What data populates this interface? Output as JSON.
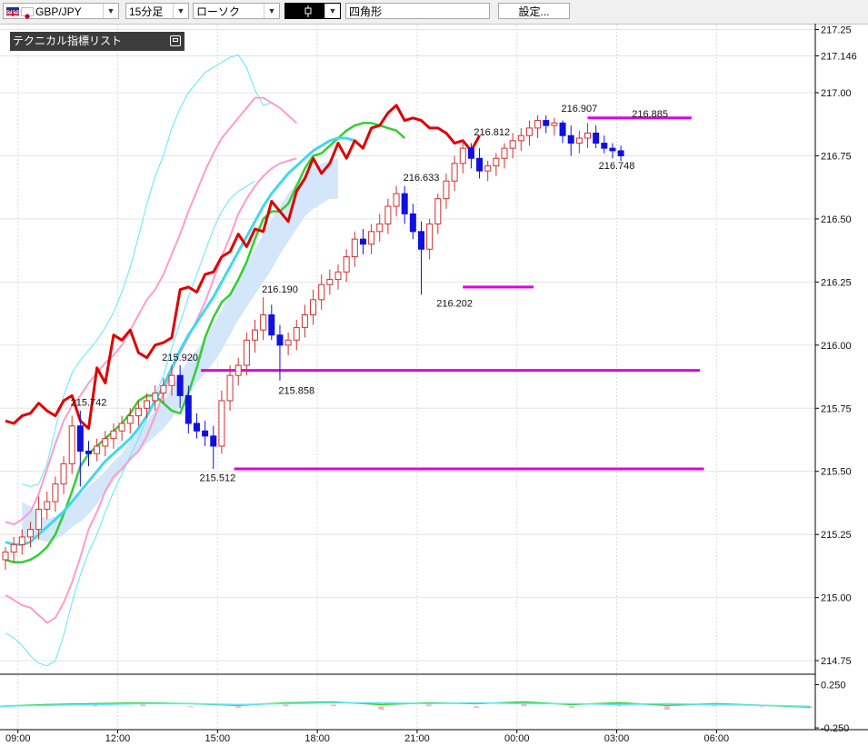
{
  "toolbar": {
    "symbol": "GBP/JPY",
    "timeframe": "15分足",
    "chart_style": "ローソク",
    "draw_tool_label": "四角形",
    "settings_label": "設定...",
    "dropdown_icon": "chevron-down-icon"
  },
  "indicator_panel": {
    "title": "テクニカル指標リスト",
    "button_icon": "restore-window-icon"
  },
  "colors": {
    "up_candle": "#d03030",
    "down_candle": "#1010e0",
    "tenkan_line": "#e00000",
    "bollinger_mid": "#30d030",
    "bollinger_inner": "#ff9cc8",
    "bollinger_outer": "#5ee8ff",
    "moving_average": "#40d8f0",
    "cloud": "#cfe3f8",
    "horizontal_line": "#e000e0"
  },
  "chart_data": {
    "type": "candlestick",
    "y_ticks": [
      {
        "value": 217.25,
        "label": "217.25"
      },
      {
        "value": 217.146,
        "label": "217.146"
      },
      {
        "value": 217.0,
        "label": "217.00"
      },
      {
        "value": 216.75,
        "label": "216.75"
      },
      {
        "value": 216.5,
        "label": "216.50"
      },
      {
        "value": 216.25,
        "label": "216.25"
      },
      {
        "value": 216.0,
        "label": "216.00"
      },
      {
        "value": 215.75,
        "label": "215.75"
      },
      {
        "value": 215.5,
        "label": "215.50"
      },
      {
        "value": 215.25,
        "label": "215.25"
      },
      {
        "value": 215.0,
        "label": "215.00"
      },
      {
        "value": 214.75,
        "label": "214.75"
      }
    ],
    "ylim": [
      214.7,
      217.27
    ],
    "x_ticks": [
      {
        "x": 1.5,
        "label": "09:00"
      },
      {
        "x": 13.5,
        "label": "12:00"
      },
      {
        "x": 25.5,
        "label": "15:00"
      },
      {
        "x": 37.5,
        "label": "18:00"
      },
      {
        "x": 49.5,
        "label": "21:00"
      },
      {
        "x": 61.5,
        "label": "00:00"
      },
      {
        "x": 73.5,
        "label": "03:00"
      },
      {
        "x": 85.5,
        "label": "06:00"
      }
    ],
    "candles": [
      [
        215.15,
        215.2,
        215.11,
        215.18
      ],
      [
        215.18,
        215.24,
        215.14,
        215.21
      ],
      [
        215.21,
        215.27,
        215.17,
        215.24
      ],
      [
        215.24,
        215.3,
        215.2,
        215.27
      ],
      [
        215.27,
        215.4,
        215.23,
        215.35
      ],
      [
        215.35,
        215.42,
        215.31,
        215.38
      ],
      [
        215.38,
        215.48,
        215.34,
        215.45
      ],
      [
        215.45,
        215.56,
        215.41,
        215.53
      ],
      [
        215.53,
        215.72,
        215.49,
        215.68
      ],
      [
        215.68,
        215.74,
        215.44,
        215.58
      ],
      [
        215.58,
        215.62,
        215.52,
        215.57
      ],
      [
        215.57,
        215.63,
        215.54,
        215.6
      ],
      [
        215.6,
        215.66,
        215.56,
        215.63
      ],
      [
        215.63,
        215.69,
        215.59,
        215.66
      ],
      [
        215.66,
        215.72,
        215.62,
        215.69
      ],
      [
        215.69,
        215.75,
        215.65,
        215.72
      ],
      [
        215.72,
        215.78,
        215.68,
        215.75
      ],
      [
        215.75,
        215.81,
        215.71,
        215.78
      ],
      [
        215.78,
        215.84,
        215.74,
        215.81
      ],
      [
        215.81,
        215.87,
        215.77,
        215.84
      ],
      [
        215.84,
        215.92,
        215.8,
        215.88
      ],
      [
        215.88,
        215.92,
        215.75,
        215.8
      ],
      [
        215.8,
        215.84,
        215.65,
        215.69
      ],
      [
        215.69,
        215.73,
        215.63,
        215.66
      ],
      [
        215.66,
        215.7,
        215.6,
        215.64
      ],
      [
        215.64,
        215.68,
        215.51,
        215.6
      ],
      [
        215.6,
        215.82,
        215.57,
        215.78
      ],
      [
        215.78,
        215.92,
        215.74,
        215.88
      ],
      [
        215.88,
        215.95,
        215.84,
        215.92
      ],
      [
        215.92,
        216.05,
        215.88,
        216.02
      ],
      [
        216.02,
        216.1,
        215.97,
        216.06
      ],
      [
        216.06,
        216.19,
        216.02,
        216.12
      ],
      [
        216.12,
        216.16,
        216.02,
        216.04
      ],
      [
        216.04,
        216.08,
        215.86,
        216.0
      ],
      [
        216.0,
        216.05,
        215.96,
        216.02
      ],
      [
        216.02,
        216.1,
        215.98,
        216.07
      ],
      [
        216.07,
        216.16,
        216.03,
        216.12
      ],
      [
        216.12,
        216.22,
        216.08,
        216.18
      ],
      [
        216.18,
        216.28,
        216.14,
        216.24
      ],
      [
        216.24,
        216.3,
        216.2,
        216.26
      ],
      [
        216.26,
        216.32,
        216.22,
        216.29
      ],
      [
        216.29,
        216.38,
        216.25,
        216.35
      ],
      [
        216.35,
        216.45,
        216.31,
        216.42
      ],
      [
        216.42,
        216.46,
        216.36,
        216.4
      ],
      [
        216.4,
        216.48,
        216.36,
        216.45
      ],
      [
        216.45,
        216.52,
        216.41,
        216.48
      ],
      [
        216.48,
        216.58,
        216.44,
        216.55
      ],
      [
        216.55,
        216.63,
        216.51,
        216.6
      ],
      [
        216.6,
        216.63,
        216.48,
        216.52
      ],
      [
        216.52,
        216.56,
        216.42,
        216.45
      ],
      [
        216.45,
        216.49,
        216.2,
        216.38
      ],
      [
        216.38,
        216.5,
        216.34,
        216.48
      ],
      [
        216.48,
        216.6,
        216.44,
        216.58
      ],
      [
        216.58,
        216.68,
        216.54,
        216.65
      ],
      [
        216.65,
        216.75,
        216.61,
        216.72
      ],
      [
        216.72,
        216.81,
        216.68,
        216.78
      ],
      [
        216.78,
        216.8,
        216.7,
        216.74
      ],
      [
        216.74,
        216.78,
        216.66,
        216.69
      ],
      [
        216.69,
        216.73,
        216.65,
        216.71
      ],
      [
        216.71,
        216.76,
        216.67,
        216.74
      ],
      [
        216.74,
        216.8,
        216.7,
        216.78
      ],
      [
        216.78,
        216.84,
        216.74,
        216.81
      ],
      [
        216.81,
        216.86,
        216.77,
        216.83
      ],
      [
        216.83,
        216.89,
        216.79,
        216.86
      ],
      [
        216.86,
        216.91,
        216.82,
        216.89
      ],
      [
        216.89,
        216.91,
        216.84,
        216.87
      ],
      [
        216.87,
        216.9,
        216.83,
        216.88
      ],
      [
        216.88,
        216.89,
        216.8,
        216.83
      ],
      [
        216.83,
        216.87,
        216.75,
        216.8
      ],
      [
        216.8,
        216.85,
        216.76,
        216.82
      ],
      [
        216.82,
        216.88,
        216.78,
        216.84
      ],
      [
        216.84,
        216.87,
        216.78,
        216.8
      ],
      [
        216.8,
        216.83,
        216.76,
        216.78
      ],
      [
        216.78,
        216.8,
        216.74,
        216.77
      ],
      [
        216.77,
        216.79,
        216.73,
        216.75
      ]
    ],
    "tenkan": [
      215.7,
      215.69,
      215.72,
      215.73,
      215.77,
      215.74,
      215.72,
      215.78,
      215.8,
      215.7,
      215.67,
      215.91,
      215.85,
      216.04,
      216.02,
      216.06,
      215.97,
      215.95,
      216.0,
      216.01,
      216.03,
      216.22,
      216.23,
      216.21,
      216.28,
      216.29,
      216.35,
      216.37,
      216.44,
      216.39,
      216.46,
      216.45,
      216.57,
      216.53,
      216.49,
      216.61,
      216.66,
      216.74,
      216.68,
      216.72,
      216.8,
      216.74,
      216.81,
      216.78,
      216.86,
      216.87,
      216.92,
      216.95,
      216.89,
      216.9,
      216.89,
      216.86,
      216.86,
      216.84,
      216.8,
      216.81,
      216.77,
      216.83
    ],
    "bb_mid": [
      215.15,
      215.14,
      215.14,
      215.15,
      215.17,
      215.2,
      215.25,
      215.33,
      215.42,
      215.52,
      215.57,
      215.6,
      215.63,
      215.66,
      215.69,
      215.73,
      215.78,
      215.8,
      215.8,
      215.77,
      215.74,
      215.73,
      215.81,
      215.91,
      216.03,
      216.11,
      216.17,
      216.2,
      216.26,
      216.33,
      216.42,
      216.5,
      216.53,
      216.53,
      216.56,
      216.63,
      216.7,
      216.75,
      216.76,
      216.79,
      216.82,
      216.85,
      216.87,
      216.88,
      216.88,
      216.87,
      216.86,
      216.85,
      216.82
    ],
    "bb_upper1": [
      215.3,
      215.29,
      215.31,
      215.34,
      215.41,
      215.51,
      215.61,
      215.7,
      215.76,
      215.8,
      215.85,
      215.89,
      215.93,
      215.96,
      216.0,
      216.06,
      216.12,
      216.18,
      216.22,
      216.28,
      216.36,
      216.44,
      216.53,
      216.61,
      216.69,
      216.76,
      216.82,
      216.86,
      216.9,
      216.94,
      216.98,
      216.98,
      216.96,
      216.94,
      216.91,
      216.88
    ],
    "bb_lower1": [
      215.01,
      214.99,
      214.97,
      214.96,
      214.93,
      214.9,
      214.92,
      214.98,
      215.06,
      215.16,
      215.27,
      215.34,
      215.42,
      215.48,
      215.51,
      215.55,
      215.58,
      215.64,
      215.72,
      215.81,
      215.9,
      215.97,
      216.03,
      216.1,
      216.17,
      216.26,
      216.35,
      216.43,
      216.52,
      216.58,
      216.63,
      216.67,
      216.7,
      216.72,
      216.73,
      216.74
    ],
    "bb_upper2": [
      215.45,
      215.44,
      215.45,
      215.53,
      215.67,
      215.8,
      215.89,
      215.94,
      215.98,
      216.02,
      216.07,
      216.13,
      216.21,
      216.31,
      216.43,
      216.56,
      216.67,
      216.75,
      216.86,
      216.94,
      217.0,
      217.04,
      217.08,
      217.1,
      217.12,
      217.14,
      217.15,
      217.1,
      217.01,
      216.95,
      216.96
    ],
    "bb_lower2": [
      214.86,
      214.84,
      214.81,
      214.77,
      214.74,
      214.73,
      214.75,
      214.85,
      214.98,
      215.09,
      215.18,
      215.25,
      215.34,
      215.42,
      215.49,
      215.56,
      215.63,
      215.71,
      215.8,
      215.88,
      215.99,
      216.09,
      216.19,
      216.28,
      216.37,
      216.46,
      216.53,
      216.58,
      216.61,
      216.63,
      216.65
    ],
    "moving_average": [
      215.22,
      215.21,
      215.21,
      215.22,
      215.25,
      215.28,
      215.31,
      215.34,
      215.38,
      215.42,
      215.46,
      215.5,
      215.54,
      215.57,
      215.6,
      215.63,
      215.67,
      215.72,
      215.78,
      215.84,
      215.91,
      215.98,
      216.04,
      216.09,
      216.14,
      216.19,
      216.25,
      216.31,
      216.37,
      216.43,
      216.49,
      216.55,
      216.6,
      216.64,
      216.68,
      216.71,
      216.74,
      216.77,
      216.79,
      216.81,
      216.82,
      216.82,
      216.81
    ],
    "cloud_top": [
      215.38,
      215.36,
      215.33,
      215.31,
      215.32,
      215.35,
      215.38,
      215.41,
      215.44,
      215.47,
      215.5,
      215.54,
      215.57,
      215.62,
      215.66,
      215.7,
      215.74,
      215.78,
      215.83,
      215.89,
      215.94,
      215.98,
      216.02,
      216.08,
      216.14,
      216.2,
      216.26,
      216.32,
      216.38,
      216.44,
      216.5,
      216.55,
      216.6,
      216.64,
      216.67,
      216.7,
      216.72,
      216.73,
      216.74
    ],
    "cloud_bottom": [
      215.24,
      215.24,
      215.23,
      215.22,
      215.23,
      215.25,
      215.28,
      215.3,
      215.33,
      215.37,
      215.42,
      215.46,
      215.5,
      215.54,
      215.58,
      215.61,
      215.64,
      215.67,
      215.71,
      215.76,
      215.8,
      215.85,
      215.89,
      215.93,
      215.98,
      216.04,
      216.1,
      216.15,
      216.2,
      216.25,
      216.3,
      216.36,
      216.41,
      216.46,
      216.51,
      216.54,
      216.56,
      216.58,
      216.58
    ],
    "horizontal_lines": [
      {
        "value": 215.9,
        "from": 23.5,
        "to": 83.5
      },
      {
        "value": 215.51,
        "from": 27.5,
        "to": 84
      },
      {
        "value": 216.23,
        "from": 55,
        "to": 63.5
      },
      {
        "value": 216.9,
        "from": 70,
        "to": 82.5
      }
    ],
    "price_labels": [
      {
        "x": 10,
        "value": 215.742,
        "text": "215.742",
        "pos": "above"
      },
      {
        "x": 21,
        "value": 215.92,
        "text": "215.920",
        "pos": "above"
      },
      {
        "x": 25.5,
        "value": 215.512,
        "text": "215.512",
        "pos": "below"
      },
      {
        "x": 33,
        "value": 216.19,
        "text": "216.190",
        "pos": "above"
      },
      {
        "x": 35,
        "value": 215.858,
        "text": "215.858",
        "pos": "below"
      },
      {
        "x": 50,
        "value": 216.633,
        "text": "216.633",
        "pos": "above"
      },
      {
        "x": 54,
        "value": 216.202,
        "text": "216.202",
        "pos": "below"
      },
      {
        "x": 58.5,
        "value": 216.812,
        "text": "216.812",
        "pos": "above"
      },
      {
        "x": 69,
        "value": 216.907,
        "text": "216.907",
        "pos": "above"
      },
      {
        "x": 73.5,
        "value": 216.748,
        "text": "216.748",
        "pos": "below"
      },
      {
        "x": 77.5,
        "value": 216.885,
        "text": "216.885",
        "pos": "above"
      }
    ],
    "sub_chart": {
      "y_ticks": [
        {
          "value": 0.25,
          "label": "0.250"
        },
        {
          "value": -0.25,
          "label": "-0.250"
        }
      ],
      "ylim": [
        -0.27,
        0.36
      ],
      "signal": [
        0.0,
        0.01,
        0.02,
        0.03,
        0.03,
        0.02,
        0.03,
        0.04,
        0.04,
        0.03,
        0.04,
        0.03,
        0.03,
        0.02,
        0.03,
        0.02,
        0.01,
        0.0
      ],
      "macd": [
        0.0,
        0.02,
        0.03,
        0.04,
        0.03,
        0.01,
        0.04,
        0.05,
        0.02,
        0.04,
        0.03,
        0.05,
        0.02,
        0.04,
        0.01,
        0.03,
        0.01,
        -0.01
      ],
      "histogram_base": 0.0
    }
  }
}
